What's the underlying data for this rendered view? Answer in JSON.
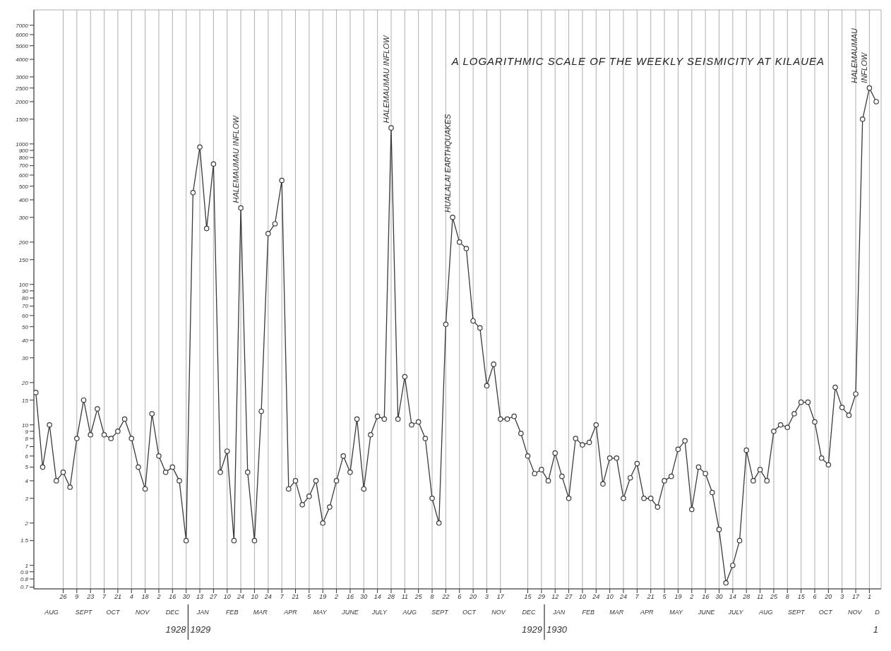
{
  "chart_data": {
    "type": "line",
    "title": "A LOGARITHMIC SCALE OF THE WEEKLY SEISMICITY AT KILAUEA",
    "x": [
      "1928-07-29",
      "1928-08-05",
      "1928-08-12",
      "1928-08-19",
      "1928-08-26",
      "1928-09-02",
      "1928-09-09",
      "1928-09-16",
      "1928-09-23",
      "1928-09-30",
      "1928-10-07",
      "1928-10-14",
      "1928-10-21",
      "1928-10-28",
      "1928-11-04",
      "1928-11-11",
      "1928-11-18",
      "1928-11-25",
      "1928-12-02",
      "1928-12-09",
      "1928-12-16",
      "1928-12-23",
      "1928-12-30",
      "1929-01-06",
      "1929-01-13",
      "1929-01-20",
      "1929-01-27",
      "1929-02-03",
      "1929-02-10",
      "1929-02-17",
      "1929-02-24",
      "1929-03-03",
      "1929-03-10",
      "1929-03-17",
      "1929-03-24",
      "1929-03-31",
      "1929-04-07",
      "1929-04-14",
      "1929-04-21",
      "1929-04-28",
      "1929-05-05",
      "1929-05-12",
      "1929-05-19",
      "1929-05-26",
      "1929-06-02",
      "1929-06-09",
      "1929-06-16",
      "1929-06-23",
      "1929-06-30",
      "1929-07-07",
      "1929-07-14",
      "1929-07-21",
      "1929-07-28",
      "1929-08-04",
      "1929-08-11",
      "1929-08-18",
      "1929-08-25",
      "1929-09-01",
      "1929-09-08",
      "1929-09-15",
      "1929-09-22",
      "1929-09-29",
      "1929-10-06",
      "1929-10-13",
      "1929-10-20",
      "1929-10-27",
      "1929-11-03",
      "1929-11-10",
      "1929-11-17",
      "1929-11-24",
      "1929-12-01",
      "1929-12-08",
      "1929-12-15",
      "1929-12-22",
      "1929-12-29",
      "1930-01-05",
      "1930-01-12",
      "1930-01-19",
      "1930-01-26",
      "1930-02-02",
      "1930-02-09",
      "1930-02-16",
      "1930-02-23",
      "1930-03-02",
      "1930-03-09",
      "1930-03-16",
      "1930-03-23",
      "1930-03-30",
      "1930-04-06",
      "1930-04-13",
      "1930-04-20",
      "1930-04-27",
      "1930-05-04",
      "1930-05-11",
      "1930-05-18",
      "1930-05-25",
      "1930-06-01",
      "1930-06-08",
      "1930-06-15",
      "1930-06-22",
      "1930-06-29",
      "1930-07-06",
      "1930-07-13",
      "1930-07-20",
      "1930-07-27",
      "1930-08-03",
      "1930-08-10",
      "1930-08-17",
      "1930-08-24",
      "1930-08-31",
      "1930-09-07",
      "1930-09-14",
      "1930-09-21",
      "1930-09-28",
      "1930-10-05",
      "1930-10-12",
      "1930-10-19",
      "1930-10-26",
      "1930-11-02",
      "1930-11-09",
      "1930-11-16",
      "1930-11-23",
      "1930-11-30",
      "1930-12-07"
    ],
    "values": [
      17,
      5,
      10,
      4,
      4.6,
      3.6,
      8,
      15,
      8.5,
      13,
      8.5,
      8,
      9,
      11,
      8,
      5,
      3.5,
      12,
      6,
      4.6,
      5,
      4,
      1.5,
      450,
      950,
      250,
      720,
      4.6,
      6.5,
      1.5,
      350,
      4.6,
      1.5,
      12.5,
      230,
      270,
      550,
      3.5,
      4,
      2.7,
      3.1,
      4,
      2,
      2.6,
      4,
      6,
      4.6,
      11,
      3.5,
      8.5,
      11.5,
      11,
      1300,
      11,
      22,
      10,
      10.5,
      8,
      3,
      2,
      52,
      300,
      200,
      180,
      55,
      49,
      19,
      27,
      11,
      11,
      11.5,
      8.7,
      6,
      4.5,
      4.8,
      4,
      6.3,
      4.3,
      3,
      8,
      7.2,
      7.5,
      10,
      3.8,
      5.8,
      5.8,
      3,
      4.2,
      5.3,
      3,
      3,
      2.6,
      4,
      4.3,
      6.7,
      7.7,
      2.5,
      5,
      4.5,
      3.3,
      1.8,
      0.75,
      1,
      1.5,
      6.6,
      4,
      4.8,
      4,
      9,
      10,
      9.6,
      12,
      14.5,
      14.5,
      10.5,
      5.8,
      5.2,
      18.5,
      13.3,
      11.7,
      16.6,
      1500,
      2500,
      2000
    ],
    "color": "#3a3a3a",
    "marker": "circle",
    "line_style": "solid",
    "grid": true,
    "log": "y",
    "legend": false,
    "ylim": [
      0.68,
      9000
    ],
    "yticks": [
      0.7,
      0.8,
      0.9,
      1,
      1.5,
      2,
      3,
      4,
      5,
      6,
      7,
      8,
      9,
      10,
      15,
      20,
      30,
      40,
      50,
      60,
      70,
      80,
      90,
      100,
      150,
      200,
      300,
      400,
      500,
      600,
      700,
      800,
      900,
      1000,
      1500,
      2000,
      2500,
      3000,
      4000,
      5000,
      6000,
      7000
    ],
    "xlim": [
      "1928-07-27",
      "1930-12-12"
    ],
    "xticks": [
      {
        "value": "1928-08-26",
        "label": "26"
      },
      {
        "value": "1928-09-09",
        "label": "9"
      },
      {
        "value": "1928-09-23",
        "label": "23"
      },
      {
        "value": "1928-10-07",
        "label": "7"
      },
      {
        "value": "1928-10-21",
        "label": "21"
      },
      {
        "value": "1928-11-04",
        "label": "4"
      },
      {
        "value": "1928-11-18",
        "label": "18"
      },
      {
        "value": "1928-12-02",
        "label": "2"
      },
      {
        "value": "1928-12-16",
        "label": "16"
      },
      {
        "value": "1928-12-30",
        "label": "30"
      },
      {
        "value": "1929-01-13",
        "label": "13"
      },
      {
        "value": "1929-01-27",
        "label": "27"
      },
      {
        "value": "1929-02-10",
        "label": "10"
      },
      {
        "value": "1929-02-24",
        "label": "24"
      },
      {
        "value": "1929-03-10",
        "label": "10"
      },
      {
        "value": "1929-03-24",
        "label": "24"
      },
      {
        "value": "1929-04-07",
        "label": "7"
      },
      {
        "value": "1929-04-21",
        "label": "21"
      },
      {
        "value": "1929-05-05",
        "label": "5"
      },
      {
        "value": "1929-05-19",
        "label": "19"
      },
      {
        "value": "1929-06-02",
        "label": "2"
      },
      {
        "value": "1929-06-16",
        "label": "16"
      },
      {
        "value": "1929-06-30",
        "label": "30"
      },
      {
        "value": "1929-07-14",
        "label": "14"
      },
      {
        "value": "1929-07-28",
        "label": "28"
      },
      {
        "value": "1929-08-11",
        "label": "11"
      },
      {
        "value": "1929-08-25",
        "label": "25"
      },
      {
        "value": "1929-09-08",
        "label": "8"
      },
      {
        "value": "1929-09-22",
        "label": "22"
      },
      {
        "value": "1929-10-06",
        "label": "6"
      },
      {
        "value": "1929-10-20",
        "label": "20"
      },
      {
        "value": "1929-11-03",
        "label": "3"
      },
      {
        "value": "1929-11-17",
        "label": "17"
      },
      {
        "value": "1929-12-15",
        "label": "15"
      },
      {
        "value": "1929-12-29",
        "label": "29"
      },
      {
        "value": "1930-01-12",
        "label": "12"
      },
      {
        "value": "1930-01-26",
        "label": "27"
      },
      {
        "value": "1930-02-09",
        "label": "10"
      },
      {
        "value": "1930-02-23",
        "label": "24"
      },
      {
        "value": "1930-03-09",
        "label": "10"
      },
      {
        "value": "1930-03-23",
        "label": "24"
      },
      {
        "value": "1930-04-06",
        "label": "7"
      },
      {
        "value": "1930-04-20",
        "label": "21"
      },
      {
        "value": "1930-05-04",
        "label": "5"
      },
      {
        "value": "1930-05-18",
        "label": "19"
      },
      {
        "value": "1930-06-01",
        "label": "2"
      },
      {
        "value": "1930-06-15",
        "label": "16"
      },
      {
        "value": "1930-06-29",
        "label": "30"
      },
      {
        "value": "1930-07-13",
        "label": "14"
      },
      {
        "value": "1930-07-27",
        "label": "28"
      },
      {
        "value": "1930-08-10",
        "label": "11"
      },
      {
        "value": "1930-08-24",
        "label": "25"
      },
      {
        "value": "1930-09-07",
        "label": "8"
      },
      {
        "value": "1930-09-21",
        "label": "15"
      },
      {
        "value": "1930-10-05",
        "label": "6"
      },
      {
        "value": "1930-10-19",
        "label": "20"
      },
      {
        "value": "1930-11-02",
        "label": "3"
      },
      {
        "value": "1930-11-16",
        "label": "17"
      },
      {
        "value": "1930-11-30",
        "label": "1"
      }
    ],
    "x2lim": [
      "1928-07-27",
      "1930-12-12"
    ],
    "x2ticks": [
      {
        "value": "1928-08-14",
        "label": "AUG"
      },
      {
        "value": "1928-09-16",
        "label": "SEPT"
      },
      {
        "value": "1928-10-16",
        "label": "OCT"
      },
      {
        "value": "1928-11-15",
        "label": "NOV"
      },
      {
        "value": "1928-12-16",
        "label": "DEC"
      },
      {
        "value": "1929-01-16",
        "label": "JAN"
      },
      {
        "value": "1929-02-15",
        "label": "FEB"
      },
      {
        "value": "1929-03-16",
        "label": "MAR"
      },
      {
        "value": "1929-04-16",
        "label": "APR"
      },
      {
        "value": "1929-05-16",
        "label": "MAY"
      },
      {
        "value": "1929-06-16",
        "label": "JUNE"
      },
      {
        "value": "1929-07-16",
        "label": "JULY"
      },
      {
        "value": "1929-08-16",
        "label": "AUG"
      },
      {
        "value": "1929-09-16",
        "label": "SEPT"
      },
      {
        "value": "1929-10-16",
        "label": "OCT"
      },
      {
        "value": "1929-11-15",
        "label": "NOV"
      },
      {
        "value": "1929-12-16",
        "label": "DEC"
      },
      {
        "value": "1930-01-16",
        "label": "JAN"
      },
      {
        "value": "1930-02-15",
        "label": "FEB"
      },
      {
        "value": "1930-03-16",
        "label": "MAR"
      },
      {
        "value": "1930-04-16",
        "label": "APR"
      },
      {
        "value": "1930-05-16",
        "label": "MAY"
      },
      {
        "value": "1930-06-16",
        "label": "JUNE"
      },
      {
        "value": "1930-07-16",
        "label": "JULY"
      },
      {
        "value": "1930-08-16",
        "label": "AUG"
      },
      {
        "value": "1930-09-16",
        "label": "SEPT"
      },
      {
        "value": "1930-10-16",
        "label": "OCT"
      },
      {
        "value": "1930-11-15",
        "label": "NOV"
      },
      {
        "value": "1930-12-08",
        "label": "D"
      }
    ],
    "annotations": [
      {
        "text": "HALEMAUMAU INFLOW",
        "x": "1929-02-24",
        "y": 350
      },
      {
        "text": "HALEMAUMAU INFLOW",
        "x": "1929-07-28",
        "y": 1300
      },
      {
        "text": "HUALALAI EARTHQUAKES",
        "x": "1929-09-29",
        "y": 300
      },
      {
        "text": "HALEMAUMAU INFLOW",
        "x": "1930-11-30",
        "y": 2500
      },
      "1"
    ],
    "ref_lines": [
      {
        "axis": "x",
        "value": "1929-01-01",
        "label": "1928 1929"
      },
      {
        "axis": "x",
        "value": "1930-01-01",
        "label": "1929 1930"
      }
    ]
  }
}
